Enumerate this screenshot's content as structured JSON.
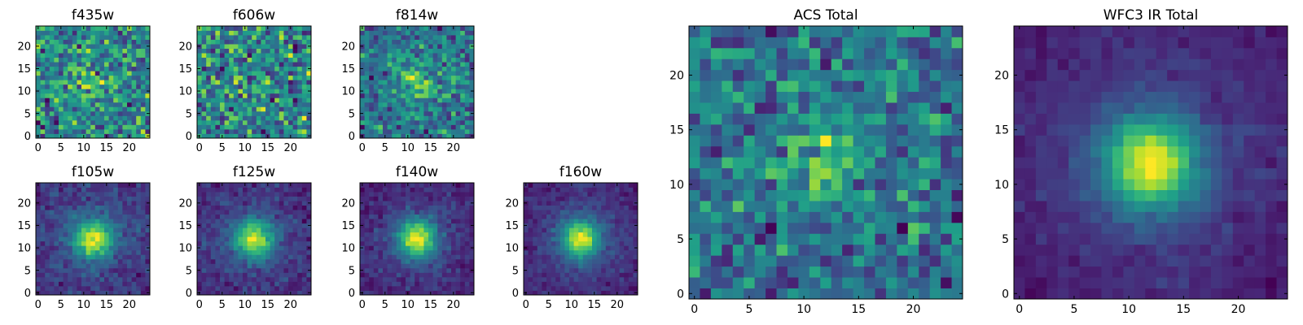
{
  "chart_data": [
    {
      "type": "heatmap",
      "title": "f435w",
      "xlabel": "",
      "ylabel": "",
      "xlim": [
        -0.5,
        24.5
      ],
      "ylim": [
        -0.5,
        24.5
      ],
      "x_ticks": [
        0,
        5,
        10,
        15,
        20
      ],
      "y_ticks": [
        0,
        5,
        10,
        15,
        20
      ],
      "colormap": "viridis",
      "grid_size": [
        25,
        25
      ],
      "source_profile": {
        "center": [
          12,
          12
        ],
        "sigma": 3,
        "peak": 0.15,
        "noise": 0.55
      }
    },
    {
      "type": "heatmap",
      "title": "f606w",
      "xlabel": "",
      "ylabel": "",
      "xlim": [
        -0.5,
        24.5
      ],
      "ylim": [
        -0.5,
        24.5
      ],
      "x_ticks": [
        0,
        5,
        10,
        15,
        20
      ],
      "y_ticks": [
        0,
        5,
        10,
        15,
        20
      ],
      "colormap": "viridis",
      "grid_size": [
        25,
        25
      ],
      "source_profile": {
        "center": [
          12,
          12
        ],
        "sigma": 3,
        "peak": 0.1,
        "noise": 0.6
      }
    },
    {
      "type": "heatmap",
      "title": "f814w",
      "xlabel": "",
      "ylabel": "",
      "xlim": [
        -0.5,
        24.5
      ],
      "ylim": [
        -0.5,
        24.5
      ],
      "x_ticks": [
        0,
        5,
        10,
        15,
        20
      ],
      "y_ticks": [
        0,
        5,
        10,
        15,
        20
      ],
      "colormap": "viridis",
      "grid_size": [
        25,
        25
      ],
      "source_profile": {
        "center": [
          12,
          12
        ],
        "sigma": 2.2,
        "peak": 0.3,
        "noise": 0.4
      }
    },
    {
      "type": "heatmap",
      "title": "f105w",
      "xlabel": "",
      "ylabel": "",
      "xlim": [
        -0.5,
        24.5
      ],
      "ylim": [
        -0.5,
        24.5
      ],
      "x_ticks": [
        0,
        5,
        10,
        15,
        20
      ],
      "y_ticks": [
        0,
        5,
        10,
        15,
        20
      ],
      "colormap": "viridis",
      "grid_size": [
        25,
        25
      ],
      "source_profile": {
        "center": [
          12,
          12
        ],
        "sigma": 2.8,
        "peak": 0.85,
        "noise": 0.22
      }
    },
    {
      "type": "heatmap",
      "title": "f125w",
      "xlabel": "",
      "ylabel": "",
      "xlim": [
        -0.5,
        24.5
      ],
      "ylim": [
        -0.5,
        24.5
      ],
      "x_ticks": [
        0,
        5,
        10,
        15,
        20
      ],
      "y_ticks": [
        0,
        5,
        10,
        15,
        20
      ],
      "colormap": "viridis",
      "grid_size": [
        25,
        25
      ],
      "source_profile": {
        "center": [
          12,
          12
        ],
        "sigma": 2.8,
        "peak": 0.85,
        "noise": 0.22
      }
    },
    {
      "type": "heatmap",
      "title": "f140w",
      "xlabel": "",
      "ylabel": "",
      "xlim": [
        -0.5,
        24.5
      ],
      "ylim": [
        -0.5,
        24.5
      ],
      "x_ticks": [
        0,
        5,
        10,
        15,
        20
      ],
      "y_ticks": [
        0,
        5,
        10,
        15,
        20
      ],
      "colormap": "viridis",
      "grid_size": [
        25,
        25
      ],
      "source_profile": {
        "center": [
          12,
          12
        ],
        "sigma": 2.8,
        "peak": 0.9,
        "noise": 0.18
      }
    },
    {
      "type": "heatmap",
      "title": "f160w",
      "xlabel": "",
      "ylabel": "",
      "xlim": [
        -0.5,
        24.5
      ],
      "ylim": [
        -0.5,
        24.5
      ],
      "x_ticks": [
        0,
        5,
        10,
        15,
        20
      ],
      "y_ticks": [
        0,
        5,
        10,
        15,
        20
      ],
      "colormap": "viridis",
      "grid_size": [
        25,
        25
      ],
      "source_profile": {
        "center": [
          12,
          12
        ],
        "sigma": 2.8,
        "peak": 0.9,
        "noise": 0.16
      }
    },
    {
      "type": "heatmap",
      "title": "ACS Total",
      "xlabel": "",
      "ylabel": "",
      "xlim": [
        -0.5,
        24.5
      ],
      "ylim": [
        -0.5,
        24.5
      ],
      "x_ticks": [
        0,
        5,
        10,
        15,
        20
      ],
      "y_ticks": [
        0,
        5,
        10,
        15,
        20
      ],
      "colormap": "viridis",
      "grid_size": [
        25,
        25
      ],
      "source_profile": {
        "center": [
          12,
          12
        ],
        "sigma": 2.5,
        "peak": 0.2,
        "noise": 0.3
      }
    },
    {
      "type": "heatmap",
      "title": "WFC3 IR Total",
      "xlabel": "",
      "ylabel": "",
      "xlim": [
        -0.5,
        24.5
      ],
      "ylim": [
        -0.5,
        24.5
      ],
      "x_ticks": [
        0,
        5,
        10,
        15,
        20
      ],
      "y_ticks": [
        0,
        5,
        10,
        15,
        20
      ],
      "colormap": "viridis",
      "grid_size": [
        25,
        25
      ],
      "source_profile": {
        "center": [
          12,
          12
        ],
        "sigma": 2.8,
        "peak": 0.95,
        "noise": 0.12
      }
    }
  ]
}
